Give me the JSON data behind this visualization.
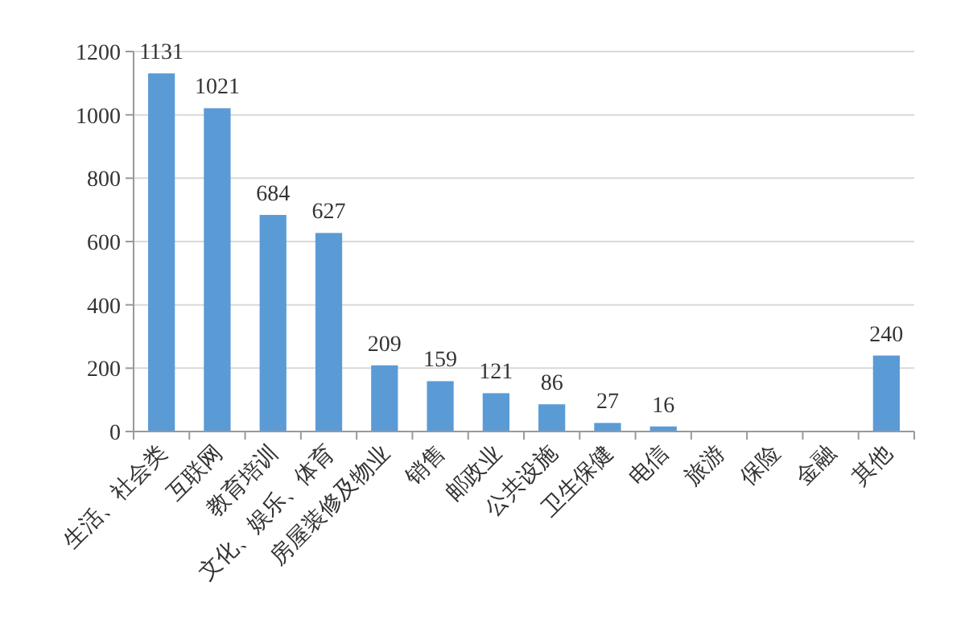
{
  "chart_data": {
    "type": "bar",
    "categories": [
      "生活、社会类",
      "互联网",
      "教育培训",
      "文化、娱乐、体育",
      "房屋装修及物业",
      "销售",
      "邮政业",
      "公共设施",
      "卫生保健",
      "电信",
      "旅游",
      "保险",
      "金融",
      "其他"
    ],
    "values": [
      1131,
      1021,
      684,
      627,
      209,
      159,
      121,
      86,
      27,
      16,
      0,
      0,
      0,
      240
    ],
    "value_labels": [
      "1131",
      "1021",
      "684",
      "627",
      "209",
      "159",
      "121",
      "86",
      "27",
      "16",
      null,
      null,
      null,
      "240"
    ],
    "color": "#5b9bd5",
    "ylim": [
      0,
      1200
    ],
    "yticks": [
      0,
      200,
      400,
      600,
      800,
      1000,
      1200
    ],
    "grid": "y"
  }
}
